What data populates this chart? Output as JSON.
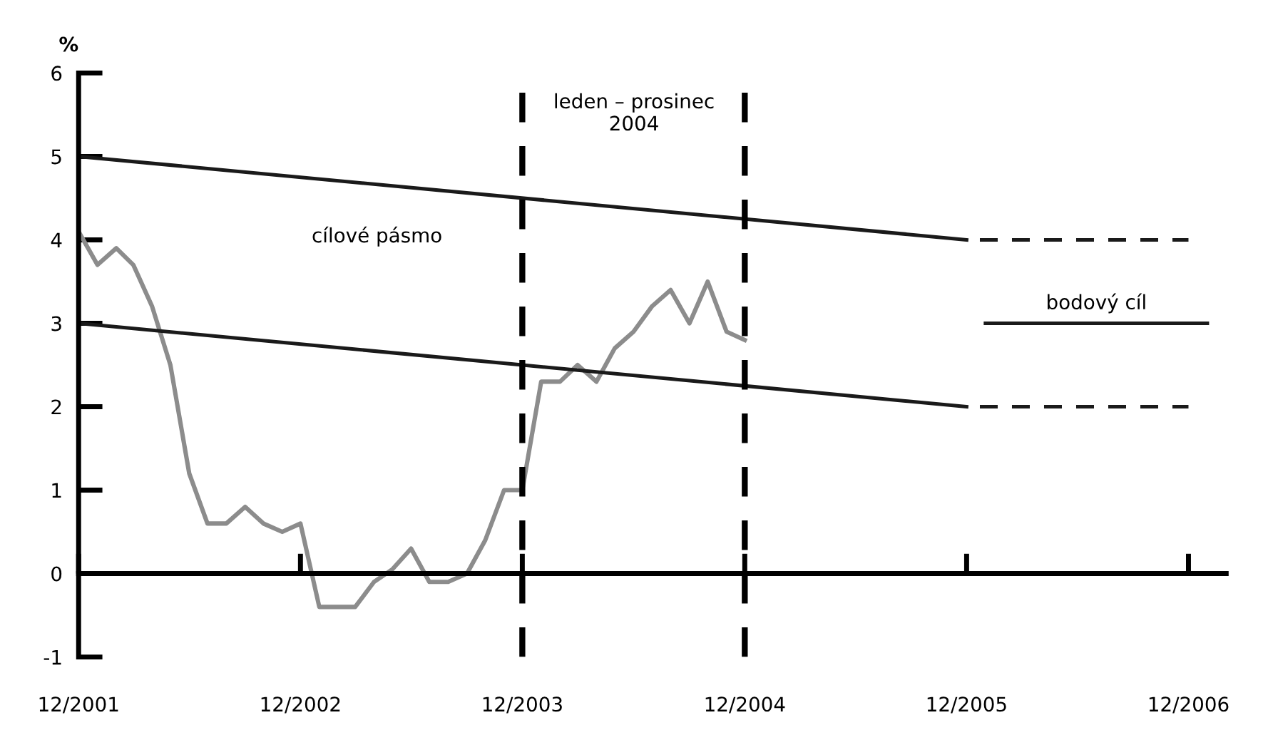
{
  "chart_data": {
    "type": "line",
    "ylabel": "%",
    "x": [
      "2001-12",
      "2002-01",
      "2002-02",
      "2002-03",
      "2002-04",
      "2002-05",
      "2002-06",
      "2002-07",
      "2002-08",
      "2002-09",
      "2002-10",
      "2002-11",
      "2002-12",
      "2003-01",
      "2003-02",
      "2003-03",
      "2003-04",
      "2003-05",
      "2003-06",
      "2003-07",
      "2003-08",
      "2003-09",
      "2003-10",
      "2003-11",
      "2003-12",
      "2004-01",
      "2004-02",
      "2004-03",
      "2004-04",
      "2004-05",
      "2004-06",
      "2004-07",
      "2004-08",
      "2004-09",
      "2004-10",
      "2004-11",
      "2004-12"
    ],
    "series": [
      {
        "color": "#8c8c8c",
        "values": [
          4.1,
          3.7,
          3.9,
          3.7,
          3.2,
          2.5,
          1.2,
          0.6,
          0.6,
          0.8,
          0.6,
          0.5,
          0.6,
          -0.4,
          -0.4,
          -0.4,
          -0.1,
          0.05,
          0.3,
          -0.1,
          -0.1,
          0.0,
          0.4,
          1.0,
          1.0,
          2.3,
          2.3,
          2.5,
          2.3,
          2.7,
          2.9,
          3.2,
          3.4,
          3.0,
          3.5,
          2.9,
          2.8
        ]
      },
      {
        "color": "#1a1a1a",
        "x": [
          "2001-12",
          "2005-12"
        ],
        "values": [
          5,
          4
        ],
        "line_style": "solid"
      },
      {
        "color": "#1a1a1a",
        "x": [
          "2005-12",
          "2006-12"
        ],
        "values": [
          4,
          4
        ],
        "line_style": "dashed"
      },
      {
        "color": "#1a1a1a",
        "x": [
          "2001-12",
          "2005-12"
        ],
        "values": [
          3,
          2
        ],
        "line_style": "solid"
      },
      {
        "color": "#1a1a1a",
        "x": [
          "2005-12",
          "2006-12"
        ],
        "values": [
          2,
          2
        ],
        "line_style": "dashed"
      },
      {
        "name": "bodový cíl",
        "color": "#1a1a1a",
        "x": [
          "2006-01",
          "2007-01"
        ],
        "values": [
          3,
          3
        ],
        "line_style": "solid"
      }
    ],
    "ref_lines": [
      {
        "axis": "x",
        "value": "2003-12",
        "color": "#000000",
        "line_style": "dashed"
      },
      {
        "axis": "x",
        "value": "2004-12",
        "color": "#000000",
        "line_style": "dashed"
      }
    ],
    "annotations": [
      "leden – prosinec\n2004",
      "cílové pásmo"
    ],
    "xlim": [
      "2001-12",
      "2007-02"
    ],
    "xticks": [
      {
        "value": "2001-12",
        "label": "12/2001"
      },
      {
        "value": "2002-12",
        "label": "12/2002"
      },
      {
        "value": "2003-12",
        "label": "12/2003"
      },
      {
        "value": "2004-12",
        "label": "12/2004"
      },
      {
        "value": "2005-12",
        "label": "12/2005"
      },
      {
        "value": "2006-12",
        "label": "12/2006"
      }
    ],
    "ylim": [
      -1,
      6
    ],
    "yticks": [
      -1,
      0,
      1,
      2,
      3,
      4,
      5,
      6
    ],
    "grid": false,
    "legend": false,
    "marker": "none"
  }
}
